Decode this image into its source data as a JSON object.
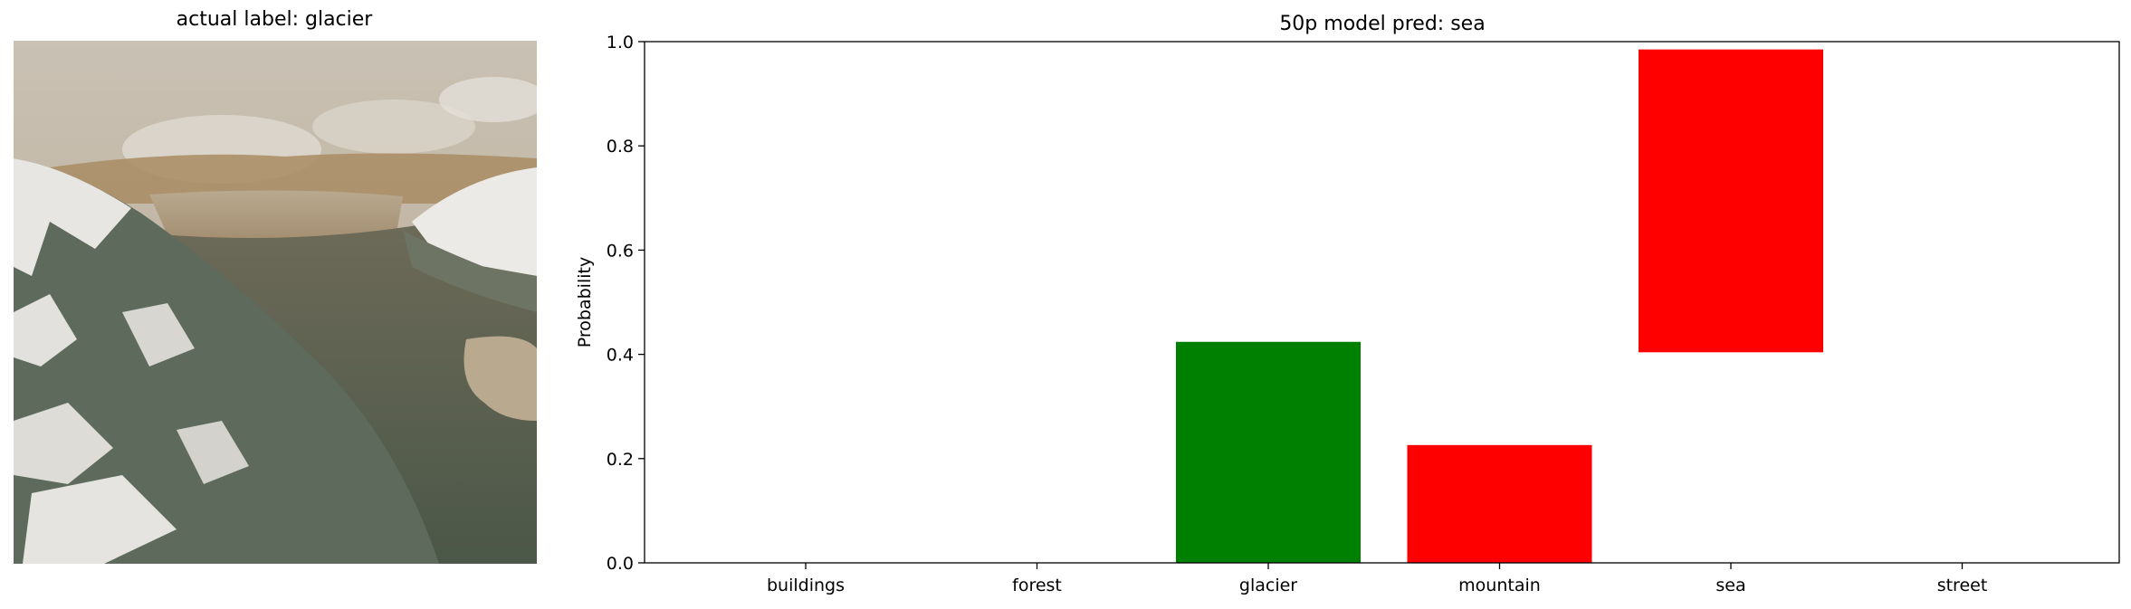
{
  "image_panel": {
    "title": "actual label: glacier",
    "image_icon": "landscape-photo-mountains-glacier-lake"
  },
  "chart_data": {
    "type": "bar",
    "title": "50p model pred: sea",
    "xlabel": "",
    "ylabel": "Probability",
    "ylim": [
      0,
      1.0
    ],
    "yticks": [
      "0.0",
      "0.2",
      "0.4",
      "0.6",
      "0.8",
      "1.0"
    ],
    "categories": [
      "buildings",
      "forest",
      "glacier",
      "mountain",
      "sea",
      "street"
    ],
    "bars": [
      {
        "category": "buildings",
        "bottom": 0.0,
        "top": 0.0,
        "color": "#ff0000"
      },
      {
        "category": "forest",
        "bottom": 0.0,
        "top": 0.0,
        "color": "#ff0000"
      },
      {
        "category": "glacier",
        "bottom": 0.0,
        "top": 0.424,
        "color": "#008000"
      },
      {
        "category": "mountain",
        "bottom": 0.0,
        "top": 0.226,
        "color": "#ff0000"
      },
      {
        "category": "sea",
        "bottom": 0.404,
        "top": 0.985,
        "color": "#ff0000"
      },
      {
        "category": "street",
        "bottom": 0.0,
        "top": 0.0,
        "color": "#ff0000"
      }
    ],
    "grid": false,
    "legend": "none"
  }
}
